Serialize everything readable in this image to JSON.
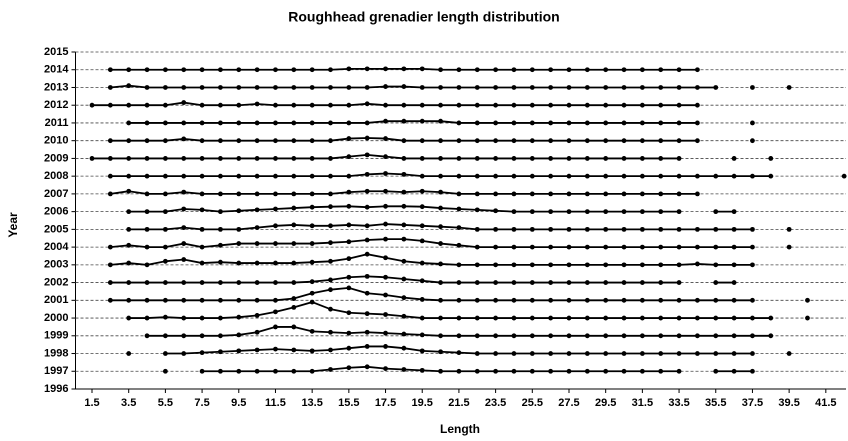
{
  "chart_data": {
    "type": "ridgeline",
    "title": "Roughhead grenadier length distribution",
    "x_label": "Length",
    "y_label": "Year",
    "color": "#000000",
    "grid": true,
    "xlim": [
      0.6,
      42.6
    ],
    "ylim": [
      1996,
      2015
    ],
    "xticks": [
      1.5,
      3.5,
      5.5,
      7.5,
      9.5,
      11.5,
      13.5,
      15.5,
      17.5,
      19.5,
      21.5,
      23.5,
      25.5,
      27.5,
      29.5,
      31.5,
      33.5,
      35.5,
      37.5,
      39.5,
      41.5
    ],
    "yticks": [
      1996,
      1997,
      1998,
      1999,
      2000,
      2001,
      2002,
      2003,
      2004,
      2005,
      2006,
      2007,
      2008,
      2009,
      2010,
      2011,
      2012,
      2013,
      2014,
      2015
    ],
    "x": [
      1.5,
      2.5,
      3.5,
      4.5,
      5.5,
      6.5,
      7.5,
      8.5,
      9.5,
      10.5,
      11.5,
      12.5,
      13.5,
      14.5,
      15.5,
      16.5,
      17.5,
      18.5,
      19.5,
      20.5,
      21.5,
      22.5,
      23.5,
      24.5,
      25.5,
      26.5,
      27.5,
      28.5,
      29.5,
      30.5,
      31.5,
      32.5,
      33.5,
      34.5,
      35.5,
      36.5,
      37.5,
      38.5,
      39.5,
      40.5,
      41.5,
      42.5
    ],
    "series": [
      {
        "values": [
          null,
          2014,
          2014,
          2014,
          2014,
          2014,
          2014,
          2014,
          2014,
          2014,
          2014,
          2014,
          2014,
          2014,
          2014.05,
          2014.05,
          2014.05,
          2014.05,
          2014.05,
          2014,
          2014,
          2014,
          2014,
          2014,
          2014,
          2014,
          2014,
          2014,
          2014,
          2014,
          2014,
          2014,
          2014,
          2014,
          null,
          null,
          null,
          null,
          null,
          null,
          null,
          null
        ]
      },
      {
        "values": [
          null,
          2013,
          2013.1,
          2013,
          2013,
          2013,
          2013,
          2013,
          2013,
          2013,
          2013,
          2013,
          2013,
          2013,
          2013,
          2013,
          2013.05,
          2013.05,
          2013,
          2013,
          2013,
          2013,
          2013,
          2013,
          2013,
          2013,
          2013,
          2013,
          2013,
          2013,
          2013,
          2013,
          2013,
          2013,
          2013,
          null,
          2013,
          null,
          2013,
          null,
          null,
          null
        ]
      },
      {
        "values": [
          2012,
          2012,
          2012,
          2012,
          2012,
          2012.15,
          2012,
          2012,
          2012,
          2012.07,
          2012,
          2012,
          2012,
          2012,
          2012,
          2012.08,
          2012,
          2012,
          2012,
          2012,
          2012,
          2012,
          2012,
          2012,
          2012,
          2012,
          2012,
          2012,
          2012,
          2012,
          2012,
          2012,
          2012,
          2012,
          null,
          null,
          null,
          null,
          null,
          null,
          null,
          null
        ]
      },
      {
        "values": [
          null,
          null,
          2011,
          2011,
          2011,
          2011,
          2011,
          2011,
          2011,
          2011,
          2011,
          2011,
          2011,
          2011,
          2011,
          2011,
          2011.1,
          2011.1,
          2011.1,
          2011.1,
          2011,
          2011,
          2011,
          2011,
          2011,
          2011,
          2011,
          2011,
          2011,
          2011,
          2011,
          2011,
          2011,
          2011,
          null,
          null,
          2011,
          null,
          null,
          null,
          null,
          null
        ]
      },
      {
        "values": [
          null,
          2010,
          2010,
          2010,
          2010,
          2010.1,
          2010,
          2010,
          2010,
          2010,
          2010,
          2010,
          2010,
          2010,
          2010.12,
          2010.15,
          2010.12,
          2010,
          2010,
          2010,
          2010,
          2010,
          2010,
          2010,
          2010,
          2010,
          2010,
          2010,
          2010,
          2010,
          2010,
          2010,
          2010,
          2010,
          null,
          null,
          2010,
          null,
          null,
          null,
          null,
          null
        ]
      },
      {
        "values": [
          2009,
          2009,
          2009,
          2009,
          2009,
          2009,
          2009,
          2009,
          2009,
          2009,
          2009,
          2009,
          2009,
          2009,
          2009.1,
          2009.2,
          2009.1,
          2009,
          2009,
          2009,
          2009,
          2009,
          2009,
          2009,
          2009,
          2009,
          2009,
          2009,
          2009,
          2009,
          2009,
          2009,
          2009,
          null,
          null,
          2009,
          null,
          2009,
          null,
          null,
          null,
          null
        ]
      },
      {
        "values": [
          null,
          2008,
          2008,
          2008,
          2008,
          2008,
          2008,
          2008,
          2008,
          2008,
          2008,
          2008,
          2008,
          2008,
          2008,
          2008.1,
          2008.15,
          2008.1,
          2008,
          2008,
          2008,
          2008,
          2008,
          2008,
          2008,
          2008,
          2008,
          2008,
          2008,
          2008,
          2008,
          2008,
          2008,
          2008,
          2008,
          2008,
          2008,
          2008,
          null,
          null,
          null,
          2008
        ]
      },
      {
        "values": [
          null,
          2007,
          2007.15,
          2007,
          2007,
          2007.1,
          2007,
          2007,
          2007,
          2007,
          2007,
          2007,
          2007,
          2007,
          2007.1,
          2007.15,
          2007.15,
          2007.1,
          2007.15,
          2007.1,
          2007,
          2007,
          2007,
          2007,
          2007,
          2007,
          2007,
          2007,
          2007,
          2007,
          2007,
          2007,
          2007,
          2007,
          null,
          null,
          null,
          null,
          null,
          null,
          null,
          null
        ]
      },
      {
        "values": [
          null,
          null,
          2006,
          2006,
          2006,
          2006.15,
          2006.1,
          2006,
          2006.05,
          2006.1,
          2006.15,
          2006.2,
          2006.25,
          2006.28,
          2006.3,
          2006.25,
          2006.3,
          2006.3,
          2006.28,
          2006.2,
          2006.15,
          2006.1,
          2006.05,
          2006,
          2006,
          2006,
          2006,
          2006,
          2006,
          2006,
          2006,
          2006,
          2006,
          null,
          2006,
          2006,
          null,
          null,
          null,
          null,
          null,
          null
        ]
      },
      {
        "values": [
          null,
          null,
          2005,
          2005,
          2005,
          2005.1,
          2005,
          2005,
          2005,
          2005.1,
          2005.2,
          2005.25,
          2005.2,
          2005.2,
          2005.25,
          2005.2,
          2005.3,
          2005.25,
          2005.2,
          2005.15,
          2005.1,
          2005,
          2005,
          2005,
          2005,
          2005,
          2005,
          2005,
          2005,
          2005,
          2005,
          2005,
          2005,
          2005,
          2005,
          2005,
          2005,
          null,
          2005,
          null,
          null,
          null
        ]
      },
      {
        "values": [
          null,
          2004,
          2004.1,
          2004,
          2004,
          2004.2,
          2004,
          2004.1,
          2004.2,
          2004.2,
          2004.2,
          2004.2,
          2004.2,
          2004.25,
          2004.3,
          2004.4,
          2004.45,
          2004.45,
          2004.35,
          2004.2,
          2004.1,
          2004,
          2004,
          2004,
          2004,
          2004,
          2004,
          2004,
          2004,
          2004,
          2004,
          2004,
          2004,
          2004,
          2004,
          2004,
          2004,
          null,
          2004,
          null,
          null,
          null
        ]
      },
      {
        "values": [
          null,
          2003,
          2003.1,
          2003,
          2003.2,
          2003.3,
          2003.1,
          2003.15,
          2003.1,
          2003.1,
          2003.1,
          2003.1,
          2003.15,
          2003.2,
          2003.35,
          2003.6,
          2003.4,
          2003.2,
          2003.1,
          2003.05,
          2003,
          2003,
          2003,
          2003,
          2003,
          2003,
          2003,
          2003,
          2003,
          2003,
          2003,
          2003,
          2003,
          2003.05,
          2003,
          2003,
          2003,
          null,
          null,
          null,
          null,
          null
        ]
      },
      {
        "values": [
          null,
          2002,
          2002,
          2002,
          2002,
          2002,
          2002,
          2002,
          2002,
          2002,
          2002,
          2002,
          2002.05,
          2002.15,
          2002.3,
          2002.35,
          2002.3,
          2002.2,
          2002.1,
          2002,
          2002,
          2002,
          2002,
          2002,
          2002,
          2002,
          2002,
          2002,
          2002,
          2002,
          2002,
          2002,
          2002,
          null,
          2002,
          2002,
          null,
          null,
          null,
          null,
          null,
          null
        ]
      },
      {
        "values": [
          null,
          2001,
          2001,
          2001,
          2001,
          2001,
          2001,
          2001,
          2001,
          2001,
          2001,
          2001.1,
          2001.4,
          2001.6,
          2001.7,
          2001.4,
          2001.3,
          2001.15,
          2001.05,
          2001,
          2001,
          2001,
          2001,
          2001,
          2001,
          2001,
          2001,
          2001,
          2001,
          2001,
          2001,
          2001,
          2001,
          2001,
          2001,
          2001,
          2001,
          null,
          null,
          2001,
          null,
          null
        ]
      },
      {
        "values": [
          null,
          null,
          2000,
          2000,
          2000.05,
          2000,
          2000,
          2000,
          2000.05,
          2000.15,
          2000.35,
          2000.6,
          2000.9,
          2000.5,
          2000.3,
          2000.25,
          2000.2,
          2000.1,
          2000,
          2000,
          2000,
          2000,
          2000,
          2000,
          2000,
          2000,
          2000,
          2000,
          2000,
          2000,
          2000,
          2000,
          2000,
          2000,
          2000,
          2000,
          2000,
          2000,
          null,
          2000,
          null,
          null
        ]
      },
      {
        "values": [
          null,
          null,
          null,
          1999,
          1999,
          1999,
          1999,
          1999,
          1999.05,
          1999.2,
          1999.5,
          1999.5,
          1999.25,
          1999.2,
          1999.15,
          1999.2,
          1999.15,
          1999.1,
          1999.05,
          1999,
          1999,
          1999,
          1999,
          1999,
          1999,
          1999,
          1999,
          1999,
          1999,
          1999,
          1999,
          1999,
          1999,
          1999,
          1999,
          1999,
          1999,
          1999,
          null,
          null,
          null,
          null
        ]
      },
      {
        "values": [
          null,
          null,
          1998,
          null,
          1998,
          1998,
          1998.05,
          1998.1,
          1998.15,
          1998.2,
          1998.25,
          1998.2,
          1998.15,
          1998.2,
          1998.3,
          1998.4,
          1998.4,
          1998.3,
          1998.15,
          1998.1,
          1998.05,
          1998,
          1998,
          1998,
          1998,
          1998,
          1998,
          1998,
          1998,
          1998,
          1998,
          1998,
          1998,
          1998,
          1998,
          1998,
          1998,
          null,
          1998,
          null,
          null,
          null
        ]
      },
      {
        "values": [
          null,
          null,
          null,
          null,
          1997,
          null,
          1997,
          1997,
          1997,
          1997,
          1997,
          1997,
          1997,
          1997.1,
          1997.2,
          1997.25,
          1997.15,
          1997.1,
          1997.05,
          1997,
          1997,
          1997,
          1997,
          1997,
          1997,
          1997,
          1997,
          1997,
          1997,
          1997,
          1997,
          1997,
          1997,
          null,
          1997,
          1997,
          1997,
          null,
          null,
          null,
          null,
          null
        ]
      }
    ]
  }
}
